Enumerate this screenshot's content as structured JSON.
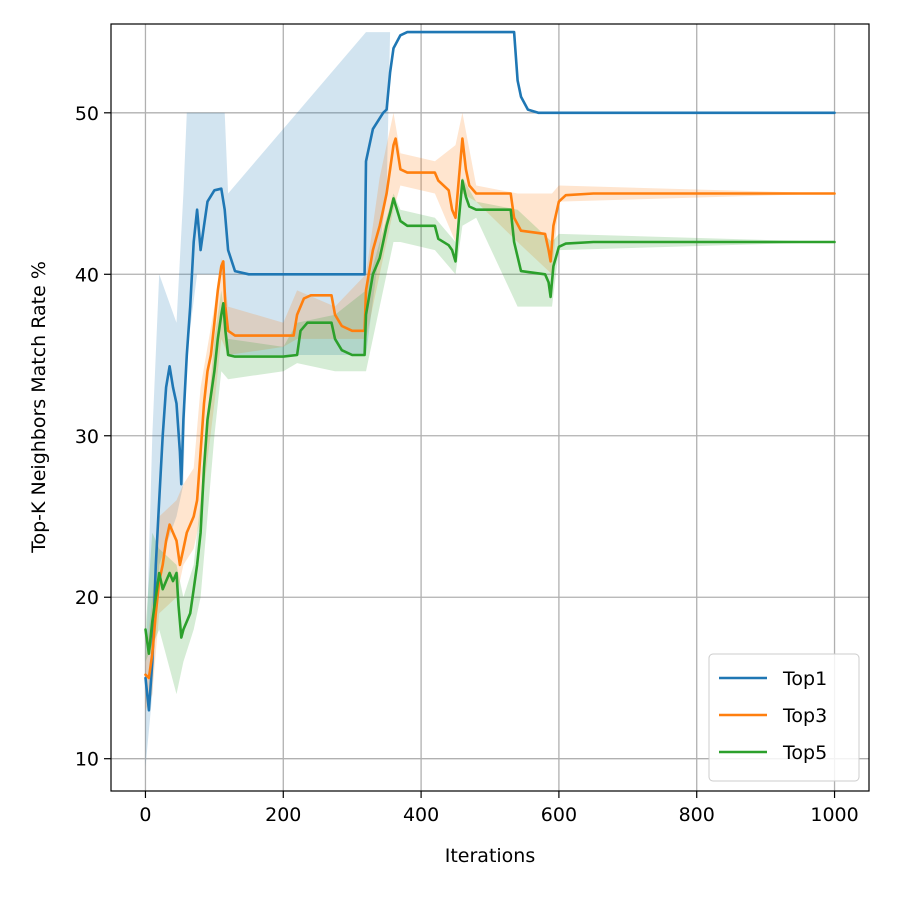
{
  "chart_data": {
    "type": "line",
    "title": "",
    "xlabel": "Iterations",
    "ylabel": "Top-K Neighbors Match Rate %",
    "xlim": [
      -50,
      1050
    ],
    "ylim": [
      8,
      55.5
    ],
    "xticks": [
      0,
      200,
      400,
      600,
      800,
      1000
    ],
    "yticks": [
      10,
      20,
      30,
      40,
      50
    ],
    "grid": true,
    "legend_position": "lower right",
    "series": [
      {
        "name": "Top1",
        "color": "#1f77b4",
        "points": [
          [
            0,
            15
          ],
          [
            5,
            13
          ],
          [
            10,
            16
          ],
          [
            15,
            22
          ],
          [
            20,
            26
          ],
          [
            25,
            30
          ],
          [
            30,
            33
          ],
          [
            35,
            34.3
          ],
          [
            40,
            33
          ],
          [
            45,
            32
          ],
          [
            50,
            29
          ],
          [
            52,
            27
          ],
          [
            55,
            31
          ],
          [
            60,
            35
          ],
          [
            65,
            38
          ],
          [
            70,
            42
          ],
          [
            75,
            44
          ],
          [
            80,
            41.5
          ],
          [
            85,
            43
          ],
          [
            90,
            44.5
          ],
          [
            100,
            45.2
          ],
          [
            110,
            45.3
          ],
          [
            115,
            44
          ],
          [
            120,
            41.5
          ],
          [
            130,
            40.2
          ],
          [
            150,
            40
          ],
          [
            200,
            40
          ],
          [
            250,
            40
          ],
          [
            300,
            40
          ],
          [
            318,
            40
          ],
          [
            320,
            47
          ],
          [
            330,
            49
          ],
          [
            345,
            50
          ],
          [
            350,
            50.2
          ],
          [
            355,
            52.5
          ],
          [
            360,
            54
          ],
          [
            370,
            54.8
          ],
          [
            380,
            55
          ],
          [
            400,
            55
          ],
          [
            450,
            55
          ],
          [
            500,
            55
          ],
          [
            535,
            55
          ],
          [
            540,
            52
          ],
          [
            545,
            51
          ],
          [
            555,
            50.2
          ],
          [
            570,
            50
          ],
          [
            600,
            50
          ],
          [
            700,
            50
          ],
          [
            800,
            50
          ],
          [
            900,
            50
          ],
          [
            1000,
            50
          ]
        ],
        "band": [
          [
            0,
            9.5,
            15
          ],
          [
            10,
            14,
            30
          ],
          [
            20,
            22,
            40
          ],
          [
            45,
            25,
            37
          ],
          [
            55,
            27,
            45
          ],
          [
            60,
            35,
            50
          ],
          [
            75,
            40,
            50
          ],
          [
            80,
            40,
            50
          ],
          [
            115,
            40,
            50
          ],
          [
            120,
            35,
            45
          ],
          [
            320,
            35,
            55
          ],
          [
            350,
            45,
            55
          ],
          [
            355,
            55,
            55
          ],
          [
            1000,
            50,
            50
          ]
        ]
      },
      {
        "name": "Top3",
        "color": "#ff7f0e",
        "points": [
          [
            0,
            15.2
          ],
          [
            5,
            15
          ],
          [
            10,
            16.5
          ],
          [
            15,
            19
          ],
          [
            20,
            21
          ],
          [
            25,
            22
          ],
          [
            30,
            23.5
          ],
          [
            35,
            24.5
          ],
          [
            40,
            24
          ],
          [
            45,
            23.5
          ],
          [
            50,
            22
          ],
          [
            55,
            23
          ],
          [
            60,
            24
          ],
          [
            70,
            25
          ],
          [
            75,
            26
          ],
          [
            80,
            29
          ],
          [
            85,
            32
          ],
          [
            90,
            34
          ],
          [
            95,
            35
          ],
          [
            100,
            37
          ],
          [
            105,
            39
          ],
          [
            110,
            40.5
          ],
          [
            113,
            40.8
          ],
          [
            116,
            38
          ],
          [
            120,
            36.5
          ],
          [
            130,
            36.2
          ],
          [
            200,
            36.2
          ],
          [
            215,
            36.2
          ],
          [
            220,
            37.5
          ],
          [
            230,
            38.5
          ],
          [
            240,
            38.7
          ],
          [
            270,
            38.7
          ],
          [
            275,
            37.5
          ],
          [
            285,
            36.8
          ],
          [
            300,
            36.5
          ],
          [
            318,
            36.5
          ],
          [
            320,
            39
          ],
          [
            330,
            41.5
          ],
          [
            340,
            43
          ],
          [
            345,
            44
          ],
          [
            350,
            45
          ],
          [
            355,
            46.5
          ],
          [
            360,
            48
          ],
          [
            363,
            48.4
          ],
          [
            370,
            46.5
          ],
          [
            380,
            46.3
          ],
          [
            420,
            46.3
          ],
          [
            425,
            45.8
          ],
          [
            440,
            45.2
          ],
          [
            445,
            44
          ],
          [
            450,
            43.5
          ],
          [
            455,
            46
          ],
          [
            460,
            48.4
          ],
          [
            465,
            46.5
          ],
          [
            470,
            45.5
          ],
          [
            480,
            45
          ],
          [
            530,
            45
          ],
          [
            535,
            43.5
          ],
          [
            545,
            42.7
          ],
          [
            580,
            42.5
          ],
          [
            585,
            41.5
          ],
          [
            588,
            40.8
          ],
          [
            592,
            43
          ],
          [
            600,
            44.5
          ],
          [
            610,
            44.9
          ],
          [
            650,
            45
          ],
          [
            700,
            45
          ],
          [
            800,
            45
          ],
          [
            900,
            45
          ],
          [
            1000,
            45
          ]
        ],
        "band": [
          [
            0,
            13,
            16
          ],
          [
            10,
            14,
            20
          ],
          [
            20,
            19,
            25
          ],
          [
            45,
            20,
            26
          ],
          [
            55,
            22,
            27
          ],
          [
            70,
            23,
            28
          ],
          [
            80,
            25,
            33
          ],
          [
            100,
            32,
            38
          ],
          [
            110,
            36,
            41
          ],
          [
            120,
            35,
            38
          ],
          [
            200,
            35.5,
            37
          ],
          [
            220,
            36,
            39
          ],
          [
            275,
            36,
            38
          ],
          [
            320,
            36,
            40
          ],
          [
            340,
            40,
            46
          ],
          [
            360,
            44,
            50
          ],
          [
            370,
            45.5,
            47.5
          ],
          [
            420,
            45,
            47
          ],
          [
            450,
            42,
            48
          ],
          [
            460,
            45,
            50
          ],
          [
            480,
            44.5,
            45.5
          ],
          [
            540,
            42,
            45
          ],
          [
            590,
            40,
            45
          ],
          [
            600,
            44.5,
            45.5
          ],
          [
            1000,
            45,
            45
          ]
        ]
      },
      {
        "name": "Top5",
        "color": "#2ca02c",
        "points": [
          [
            0,
            18
          ],
          [
            5,
            16.5
          ],
          [
            10,
            18.5
          ],
          [
            15,
            20
          ],
          [
            20,
            21.5
          ],
          [
            25,
            20.5
          ],
          [
            30,
            21
          ],
          [
            35,
            21.5
          ],
          [
            40,
            21
          ],
          [
            45,
            21.5
          ],
          [
            48,
            19.5
          ],
          [
            52,
            17.5
          ],
          [
            55,
            18
          ],
          [
            60,
            18.5
          ],
          [
            65,
            19
          ],
          [
            70,
            20.5
          ],
          [
            75,
            22
          ],
          [
            80,
            24
          ],
          [
            85,
            28
          ],
          [
            90,
            31
          ],
          [
            95,
            32.5
          ],
          [
            100,
            34
          ],
          [
            105,
            36
          ],
          [
            110,
            37.5
          ],
          [
            113,
            38.2
          ],
          [
            116,
            36.5
          ],
          [
            120,
            35
          ],
          [
            130,
            34.9
          ],
          [
            200,
            34.9
          ],
          [
            220,
            35
          ],
          [
            225,
            36.5
          ],
          [
            235,
            37
          ],
          [
            270,
            37
          ],
          [
            275,
            36
          ],
          [
            285,
            35.3
          ],
          [
            300,
            35
          ],
          [
            318,
            35
          ],
          [
            320,
            37.5
          ],
          [
            330,
            40
          ],
          [
            340,
            41
          ],
          [
            345,
            42
          ],
          [
            350,
            43
          ],
          [
            355,
            43.8
          ],
          [
            360,
            44.7
          ],
          [
            370,
            43.3
          ],
          [
            380,
            43
          ],
          [
            420,
            43
          ],
          [
            425,
            42.2
          ],
          [
            440,
            41.8
          ],
          [
            445,
            41.5
          ],
          [
            450,
            40.8
          ],
          [
            455,
            43.5
          ],
          [
            460,
            45.8
          ],
          [
            465,
            44.8
          ],
          [
            470,
            44.2
          ],
          [
            480,
            44
          ],
          [
            500,
            44
          ],
          [
            530,
            44
          ],
          [
            535,
            42
          ],
          [
            545,
            40.2
          ],
          [
            580,
            40
          ],
          [
            585,
            39.5
          ],
          [
            588,
            38.6
          ],
          [
            592,
            40.5
          ],
          [
            600,
            41.7
          ],
          [
            610,
            41.9
          ],
          [
            650,
            42
          ],
          [
            700,
            42
          ],
          [
            800,
            42
          ],
          [
            900,
            42
          ],
          [
            1000,
            42
          ]
        ],
        "band": [
          [
            0,
            16,
            18
          ],
          [
            10,
            17,
            24
          ],
          [
            20,
            18,
            23
          ],
          [
            45,
            14,
            22
          ],
          [
            55,
            16,
            20
          ],
          [
            70,
            18,
            22
          ],
          [
            80,
            20,
            26
          ],
          [
            100,
            30,
            36
          ],
          [
            110,
            34,
            39
          ],
          [
            120,
            33.5,
            36
          ],
          [
            200,
            34,
            35.5
          ],
          [
            220,
            34.5,
            37
          ],
          [
            275,
            34,
            37.5
          ],
          [
            320,
            34,
            39
          ],
          [
            340,
            38,
            42
          ],
          [
            360,
            42,
            45
          ],
          [
            370,
            42,
            44
          ],
          [
            420,
            41.5,
            43.5
          ],
          [
            450,
            40,
            42
          ],
          [
            460,
            43,
            46
          ],
          [
            480,
            43.5,
            44.5
          ],
          [
            540,
            38,
            44
          ],
          [
            590,
            38,
            42
          ],
          [
            600,
            41.5,
            42.5
          ],
          [
            1000,
            42,
            42
          ]
        ]
      }
    ]
  }
}
